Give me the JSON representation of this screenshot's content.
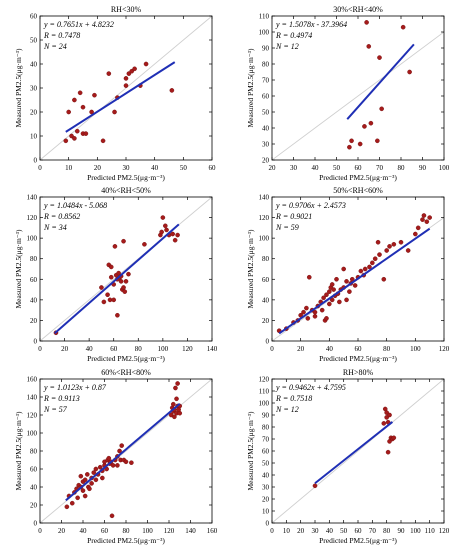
{
  "chart_data": [
    {
      "type": "scatter",
      "title": "RH<30%",
      "equation": "y = 0.7651x + 4.8232",
      "r_label": "R = 0.7478",
      "n_label": "N = 24",
      "xlabel": "Predicted PM2.5(μg·m⁻³)",
      "ylabel": "Measured PM2.5(μg·m⁻³)",
      "xlim": [
        0,
        60
      ],
      "ylim": [
        0,
        60
      ],
      "xticks": [
        0,
        10,
        20,
        30,
        40,
        50,
        60
      ],
      "yticks": [
        0,
        10,
        20,
        30,
        40,
        50,
        60
      ],
      "fit": {
        "slope": 0.7651,
        "intercept": 4.8232,
        "x_range": [
          9,
          47
        ]
      },
      "points": [
        [
          9,
          8
        ],
        [
          10,
          20
        ],
        [
          11,
          10
        ],
        [
          12,
          9
        ],
        [
          12,
          25
        ],
        [
          13,
          12
        ],
        [
          14,
          28
        ],
        [
          15,
          22
        ],
        [
          15,
          11
        ],
        [
          16,
          11
        ],
        [
          18,
          20
        ],
        [
          19,
          27
        ],
        [
          22,
          8
        ],
        [
          24,
          36
        ],
        [
          26,
          20
        ],
        [
          27,
          26
        ],
        [
          30,
          31
        ],
        [
          30,
          34
        ],
        [
          31,
          36
        ],
        [
          32,
          37
        ],
        [
          33,
          38
        ],
        [
          35,
          31
        ],
        [
          37,
          40
        ],
        [
          46,
          29
        ]
      ]
    },
    {
      "type": "scatter",
      "title": "30%<RH<40%",
      "equation": "y = 1.5078x - 37.3964",
      "r_label": "R = 0.4974",
      "n_label": "N = 12",
      "xlabel": "Predicted PM2.5(μg·m⁻³)",
      "ylabel": "Measured PM2.5(μg·m⁻³)",
      "xlim": [
        20,
        100
      ],
      "ylim": [
        20,
        110
      ],
      "xticks": [
        20,
        30,
        40,
        50,
        60,
        70,
        80,
        90,
        100
      ],
      "yticks": [
        20,
        30,
        40,
        50,
        60,
        70,
        80,
        90,
        100,
        110
      ],
      "fit": {
        "slope": 1.5078,
        "intercept": -37.3964,
        "x_range": [
          55,
          86
        ]
      },
      "points": [
        [
          56,
          28
        ],
        [
          57,
          32
        ],
        [
          61,
          30
        ],
        [
          63,
          41
        ],
        [
          64,
          106
        ],
        [
          65,
          91
        ],
        [
          66,
          43
        ],
        [
          69,
          32
        ],
        [
          70,
          84
        ],
        [
          71,
          52
        ],
        [
          81,
          103
        ],
        [
          84,
          75
        ]
      ]
    },
    {
      "type": "scatter",
      "title": "40%<RH<50%",
      "equation": "y = 1.0484x - 5.068",
      "r_label": "R = 0.8562",
      "n_label": "N = 34",
      "xlabel": "Predicted PM2.5(μg·m⁻³)",
      "ylabel": "Measured PM2.5(μg·m⁻³)",
      "xlim": [
        0,
        140
      ],
      "ylim": [
        0,
        140
      ],
      "xticks": [
        0,
        20,
        40,
        60,
        80,
        100,
        120,
        140
      ],
      "yticks": [
        0,
        20,
        40,
        60,
        80,
        100,
        120,
        140
      ],
      "fit": {
        "slope": 1.0484,
        "intercept": -5.068,
        "x_range": [
          12,
          113
        ]
      },
      "points": [
        [
          13,
          8
        ],
        [
          50,
          52
        ],
        [
          52,
          38
        ],
        [
          55,
          45
        ],
        [
          56,
          74
        ],
        [
          57,
          40
        ],
        [
          58,
          72
        ],
        [
          58,
          62
        ],
        [
          60,
          55
        ],
        [
          60,
          40
        ],
        [
          62,
          64
        ],
        [
          63,
          60
        ],
        [
          64,
          66
        ],
        [
          65,
          62
        ],
        [
          66,
          58
        ],
        [
          67,
          50
        ],
        [
          68,
          52
        ],
        [
          68,
          97
        ],
        [
          70,
          58
        ],
        [
          72,
          65
        ],
        [
          63,
          25
        ],
        [
          61,
          92
        ],
        [
          85,
          94
        ],
        [
          98,
          103
        ],
        [
          99,
          106
        ],
        [
          100,
          120
        ],
        [
          102,
          112
        ],
        [
          103,
          108
        ],
        [
          105,
          103
        ],
        [
          108,
          104
        ],
        [
          110,
          98
        ],
        [
          112,
          103
        ],
        [
          66,
          63
        ],
        [
          69,
          48
        ]
      ]
    },
    {
      "type": "scatter",
      "title": "50%<RH<60%",
      "equation": "y = 0.9706x + 2.4573",
      "r_label": "R = 0.9021",
      "n_label": "N = 59",
      "xlabel": "Predicted PM2.5(μg·m⁻³)",
      "ylabel": "Measured PM2.5(μg·m⁻³)",
      "xlim": [
        0,
        120
      ],
      "ylim": [
        0,
        140
      ],
      "xticks": [
        0,
        20,
        40,
        60,
        80,
        100,
        120
      ],
      "yticks": [
        0,
        20,
        40,
        60,
        80,
        100,
        120,
        140
      ],
      "fit": {
        "slope": 0.9706,
        "intercept": 2.4573,
        "x_range": [
          5,
          110
        ]
      },
      "points": [
        [
          5,
          10
        ],
        [
          10,
          12
        ],
        [
          15,
          18
        ],
        [
          18,
          20
        ],
        [
          20,
          25
        ],
        [
          22,
          28
        ],
        [
          24,
          32
        ],
        [
          25,
          22
        ],
        [
          26,
          62
        ],
        [
          28,
          30
        ],
        [
          30,
          24
        ],
        [
          30,
          28
        ],
        [
          32,
          34
        ],
        [
          34,
          38
        ],
        [
          35,
          30
        ],
        [
          36,
          42
        ],
        [
          37,
          20
        ],
        [
          38,
          45
        ],
        [
          40,
          48
        ],
        [
          40,
          36
        ],
        [
          41,
          52
        ],
        [
          42,
          40
        ],
        [
          42,
          55
        ],
        [
          43,
          50
        ],
        [
          44,
          44
        ],
        [
          45,
          60
        ],
        [
          46,
          46
        ],
        [
          47,
          38
        ],
        [
          48,
          50
        ],
        [
          50,
          52
        ],
        [
          50,
          70
        ],
        [
          52,
          58
        ],
        [
          54,
          48
        ],
        [
          55,
          56
        ],
        [
          56,
          60
        ],
        [
          58,
          54
        ],
        [
          60,
          62
        ],
        [
          62,
          68
        ],
        [
          64,
          64
        ],
        [
          65,
          70
        ],
        [
          68,
          72
        ],
        [
          70,
          76
        ],
        [
          72,
          80
        ],
        [
          74,
          96
        ],
        [
          75,
          84
        ],
        [
          78,
          60
        ],
        [
          80,
          88
        ],
        [
          82,
          92
        ],
        [
          85,
          94
        ],
        [
          90,
          96
        ],
        [
          95,
          88
        ],
        [
          100,
          104
        ],
        [
          102,
          110
        ],
        [
          105,
          118
        ],
        [
          106,
          122
        ],
        [
          108,
          116
        ],
        [
          110,
          120
        ],
        [
          38,
          22
        ],
        [
          52,
          40
        ]
      ]
    },
    {
      "type": "scatter",
      "title": "60%<RH<80%",
      "equation": "y = 1.0123x + 0.87",
      "r_label": "R = 0.9113",
      "n_label": "N = 57",
      "xlabel": "Predicted PM2.5(μg·m⁻³)",
      "ylabel": "Measured PM2.5(μg·m⁻³)",
      "xlim": [
        0,
        160
      ],
      "ylim": [
        0,
        160
      ],
      "xticks": [
        0,
        20,
        40,
        60,
        80,
        100,
        120,
        140,
        160
      ],
      "yticks": [
        0,
        20,
        40,
        60,
        80,
        100,
        120,
        140,
        160
      ],
      "fit": {
        "slope": 1.0123,
        "intercept": 0.87,
        "x_range": [
          24,
          130
        ]
      },
      "points": [
        [
          25,
          18
        ],
        [
          27,
          30
        ],
        [
          30,
          22
        ],
        [
          32,
          34
        ],
        [
          34,
          38
        ],
        [
          35,
          28
        ],
        [
          36,
          42
        ],
        [
          38,
          52
        ],
        [
          38,
          40
        ],
        [
          40,
          36
        ],
        [
          40,
          46
        ],
        [
          42,
          48
        ],
        [
          42,
          30
        ],
        [
          44,
          54
        ],
        [
          45,
          40
        ],
        [
          46,
          38
        ],
        [
          48,
          44
        ],
        [
          48,
          50
        ],
        [
          50,
          56
        ],
        [
          52,
          48
        ],
        [
          52,
          60
        ],
        [
          54,
          54
        ],
        [
          56,
          62
        ],
        [
          58,
          58
        ],
        [
          58,
          50
        ],
        [
          60,
          64
        ],
        [
          60,
          68
        ],
        [
          62,
          60
        ],
        [
          63,
          70
        ],
        [
          64,
          72
        ],
        [
          65,
          66
        ],
        [
          66,
          68
        ],
        [
          67,
          8
        ],
        [
          68,
          64
        ],
        [
          70,
          70
        ],
        [
          72,
          74
        ],
        [
          72,
          64
        ],
        [
          74,
          80
        ],
        [
          75,
          70
        ],
        [
          76,
          86
        ],
        [
          78,
          70
        ],
        [
          80,
          68
        ],
        [
          85,
          67
        ],
        [
          122,
          120
        ],
        [
          123,
          128
        ],
        [
          124,
          124
        ],
        [
          124,
          132
        ],
        [
          125,
          126
        ],
        [
          125,
          118
        ],
        [
          126,
          150
        ],
        [
          127,
          122
        ],
        [
          127,
          138
        ],
        [
          128,
          130
        ],
        [
          128,
          155
        ],
        [
          129,
          126
        ],
        [
          130,
          122
        ],
        [
          130,
          130
        ]
      ]
    },
    {
      "type": "scatter",
      "title": "RH>80%",
      "equation": "y = 0.9462x + 4.7595",
      "r_label": "R = 0.7518",
      "n_label": "N = 12",
      "xlabel": "Predicted PM2.5(μg·m⁻³)",
      "ylabel": "Measured PM2.5(μg·m⁻³)",
      "xlim": [
        0,
        120
      ],
      "ylim": [
        0,
        120
      ],
      "xticks": [
        0,
        10,
        20,
        30,
        40,
        50,
        60,
        70,
        80,
        90,
        100,
        110,
        120
      ],
      "yticks": [
        0,
        10,
        20,
        30,
        40,
        50,
        60,
        70,
        80,
        90,
        100,
        110,
        120
      ],
      "fit": {
        "slope": 0.9462,
        "intercept": 4.7595,
        "x_range": [
          30,
          84
        ]
      },
      "points": [
        [
          30,
          31
        ],
        [
          78,
          83
        ],
        [
          79,
          95
        ],
        [
          80,
          92
        ],
        [
          80,
          88
        ],
        [
          81,
          84
        ],
        [
          81,
          59
        ],
        [
          82,
          68
        ],
        [
          82,
          90
        ],
        [
          83,
          71
        ],
        [
          84,
          70
        ],
        [
          85,
          71
        ]
      ]
    }
  ]
}
